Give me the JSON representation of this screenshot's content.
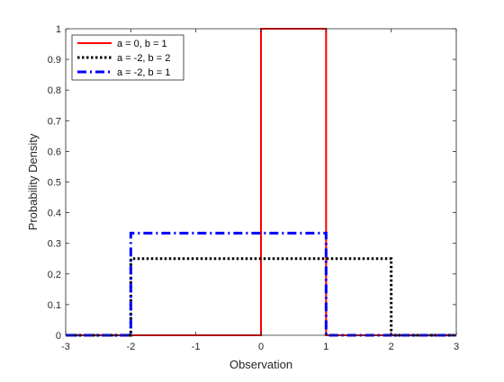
{
  "chart_data": {
    "type": "line",
    "xlabel": "Observation",
    "ylabel": "Probability Density",
    "xlim": [
      -3,
      3
    ],
    "ylim": [
      0,
      1
    ],
    "x_ticks": [
      -3,
      -2,
      -1,
      0,
      1,
      2,
      3
    ],
    "y_ticks": [
      0,
      0.1,
      0.2,
      0.3,
      0.4,
      0.5,
      0.6,
      0.7,
      0.8,
      0.9,
      1
    ],
    "grid": false,
    "legend_position": "top-left",
    "series": [
      {
        "name": "a = 0, b = 1",
        "color": "#ff0000",
        "line_style": "solid",
        "x": [
          -3,
          0,
          0,
          1,
          1,
          3
        ],
        "y": [
          0,
          0,
          1,
          1,
          0,
          0
        ]
      },
      {
        "name": "a = -2, b = 2",
        "color": "#000000",
        "line_style": "dotted",
        "x": [
          -3,
          -2,
          -2,
          2,
          2,
          3
        ],
        "y": [
          0,
          0,
          0.25,
          0.25,
          0,
          0
        ]
      },
      {
        "name": "a = -2, b = 1",
        "color": "#0000ff",
        "line_style": "dash-dot",
        "x": [
          -3,
          -2,
          -2,
          1,
          1,
          3
        ],
        "y": [
          0,
          0,
          0.3333,
          0.3333,
          0,
          0
        ]
      }
    ]
  }
}
